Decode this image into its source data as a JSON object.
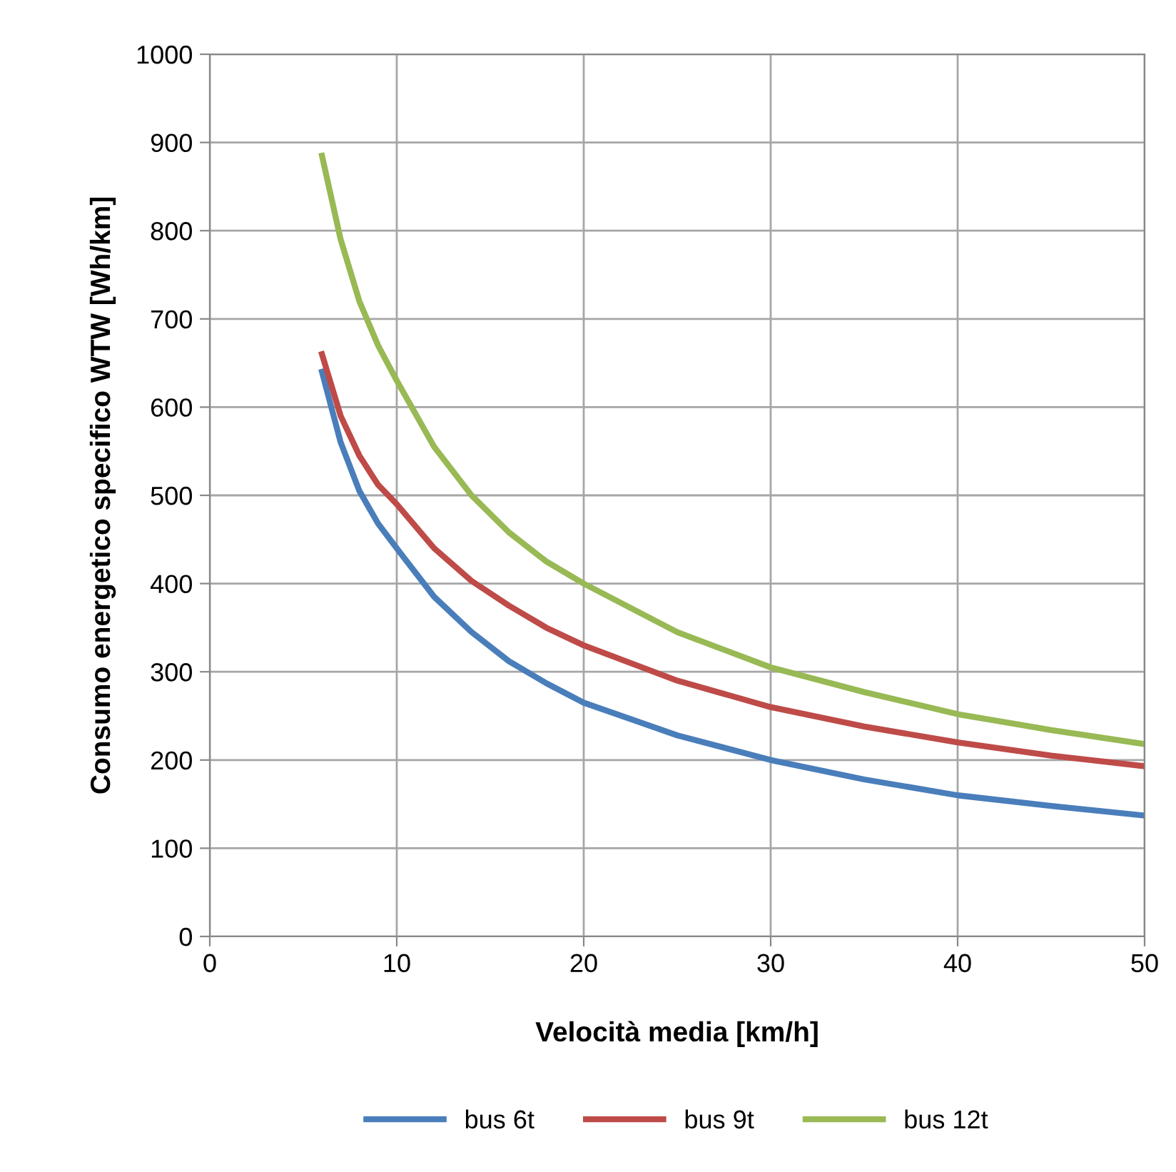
{
  "chart_data": {
    "type": "line",
    "xlabel": "Velocità media [km/h]",
    "ylabel": "Consumo energetico specifico WTW [Wh/km]",
    "x": [
      6,
      7,
      8,
      9,
      10,
      12,
      14,
      16,
      18,
      20,
      25,
      30,
      35,
      40,
      45,
      50
    ],
    "series": [
      {
        "name": "bus 6t",
        "color": "#4a7ebb",
        "values": [
          640,
          560,
          505,
          468,
          440,
          385,
          345,
          312,
          287,
          265,
          228,
          200,
          178,
          160,
          148,
          137
        ]
      },
      {
        "name": "bus 9t",
        "color": "#be4b48",
        "values": [
          660,
          590,
          545,
          512,
          490,
          440,
          403,
          375,
          350,
          330,
          290,
          260,
          238,
          220,
          205,
          193
        ]
      },
      {
        "name": "bus 12t",
        "color": "#98b954",
        "values": [
          885,
          790,
          720,
          670,
          630,
          555,
          500,
          458,
          425,
          400,
          345,
          305,
          277,
          252,
          234,
          218
        ]
      }
    ],
    "xlim": [
      0,
      50
    ],
    "xticks": [
      0,
      10,
      20,
      30,
      40,
      50
    ],
    "ylim": [
      0,
      1000
    ],
    "yticks": [
      0,
      100,
      200,
      300,
      400,
      500,
      600,
      700,
      800,
      900,
      1000
    ],
    "grid": true,
    "legend": "bottom",
    "marker": "none",
    "line_style": "solid"
  }
}
